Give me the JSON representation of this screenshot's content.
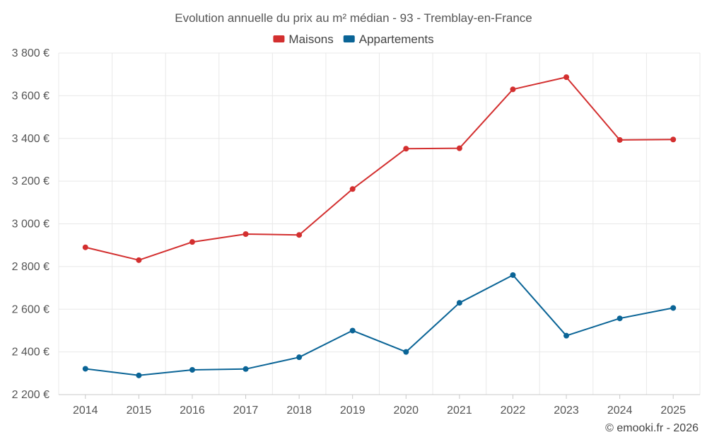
{
  "chart_data": {
    "type": "line",
    "title": "Evolution annuelle du prix au m² médian - 93 - Tremblay-en-France",
    "categories": [
      "2014",
      "2015",
      "2016",
      "2017",
      "2018",
      "2019",
      "2020",
      "2021",
      "2022",
      "2023",
      "2024",
      "2025"
    ],
    "series": [
      {
        "name": "Maisons",
        "color": "#d32f2f",
        "values": [
          2890,
          2830,
          2915,
          2952,
          2948,
          3163,
          3352,
          3354,
          3630,
          3687,
          3393,
          3395
        ]
      },
      {
        "name": "Appartements",
        "color": "#0a6496",
        "values": [
          2321,
          2290,
          2316,
          2320,
          2375,
          2500,
          2400,
          2630,
          2760,
          2476,
          2557,
          2606
        ]
      }
    ],
    "ylim": [
      2200,
      3800
    ],
    "yticks": [
      2200,
      2400,
      2600,
      2800,
      3000,
      3200,
      3400,
      3600,
      3800
    ],
    "ytick_labels": [
      "2 200 €",
      "2 400 €",
      "2 600 €",
      "2 800 €",
      "3 000 €",
      "3 200 €",
      "3 400 €",
      "3 600 €",
      "3 800 €"
    ],
    "xlabel": "",
    "ylabel": "",
    "grid": true,
    "legend_position": "top-center"
  },
  "credit": "© emooki.fr - 2026"
}
